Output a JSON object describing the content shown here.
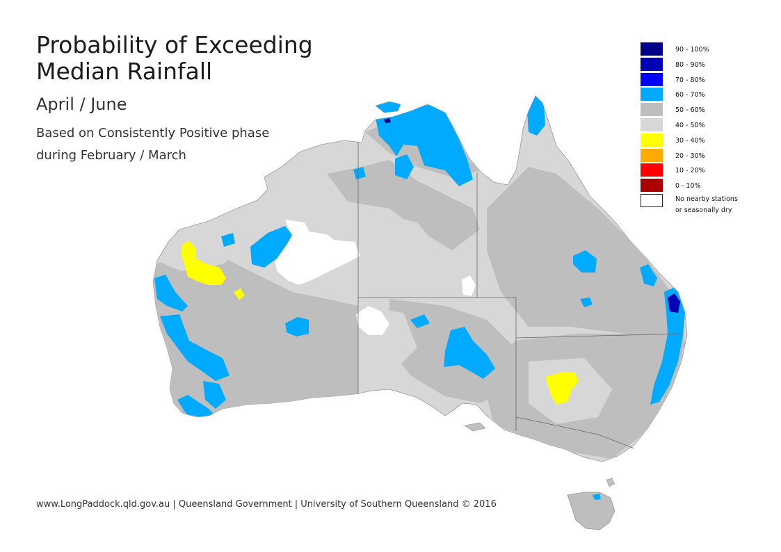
{
  "title": "Probability of Exceeding Median Rainfall",
  "subtitle": "April / June",
  "basis_line1": "Based on Consistently Positive phase",
  "basis_line2": "during February / March",
  "credit": "www.LongPaddock.qld.gov.au | Queensland Government | University of Southern Queensland © 2016",
  "legend": [
    {
      "label": "90 - 100%",
      "color": "#00008b"
    },
    {
      "label": "80 - 90%",
      "color": "#0000b4"
    },
    {
      "label": "70 - 80%",
      "color": "#0000ff"
    },
    {
      "label": "60 - 70%",
      "color": "#00aaff"
    },
    {
      "label": "50 - 60%",
      "color": "#bebebe"
    },
    {
      "label": "40 - 50%",
      "color": "#d7d7d7"
    },
    {
      "label": "30 - 40%",
      "color": "#ffff00"
    },
    {
      "label": "20 - 30%",
      "color": "#ffaa00"
    },
    {
      "label": "10 - 20%",
      "color": "#ff0000"
    },
    {
      "label": "0 - 10%",
      "color": "#aa0000"
    }
  ],
  "nodata": {
    "line1": "No nearby stations",
    "line2": "or seasonally dry",
    "color": "#ffffff"
  }
}
